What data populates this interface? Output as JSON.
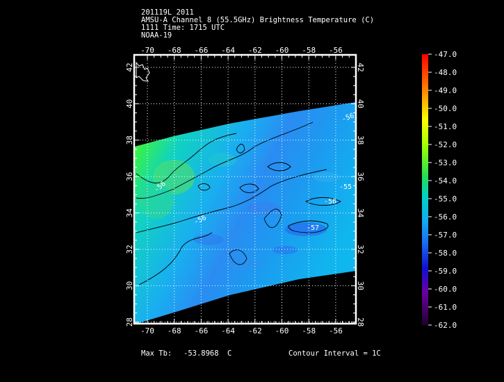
{
  "header": {
    "line1": "201119L 2011",
    "line2": "AMSU-A Channel 8 (55.5GHz) Brightness Temperature (C)",
    "line3": "1111 Time: 1715 UTC",
    "line4": "NOAA-19"
  },
  "map": {
    "lon_ticks": [
      "-70",
      "-68",
      "-66",
      "-64",
      "-62",
      "-60",
      "-58",
      "-56"
    ],
    "lat_ticks": [
      "42",
      "40",
      "38",
      "36",
      "34",
      "32",
      "30",
      "28"
    ],
    "contour_labels": [
      "-56",
      "-56",
      "-57",
      "-56",
      "-56",
      "-55"
    ]
  },
  "colorbar": {
    "labels": [
      "-47.0",
      "-48.0",
      "-49.0",
      "-50.0",
      "-51.0",
      "-52.0",
      "-53.0",
      "-54.0",
      "-55.0",
      "-56.0",
      "-57.0",
      "-58.0",
      "-59.0",
      "-60.0",
      "-61.0",
      "-62.0"
    ],
    "colors": [
      "#ff0000",
      "#ff4000",
      "#ff7f00",
      "#ffbf00",
      "#ffff00",
      "#bfff00",
      "#66ee11",
      "#22dd66",
      "#00d2c8",
      "#14a8f0",
      "#1a6af0",
      "#1010d0",
      "#4000a8",
      "#6a007a",
      "#3a0050",
      "#000000"
    ]
  },
  "footer": {
    "max_label": "Max Tb:",
    "max_value": "-53.8968",
    "max_unit": "C",
    "contour_interval": "Contour Interval = 1C"
  }
}
